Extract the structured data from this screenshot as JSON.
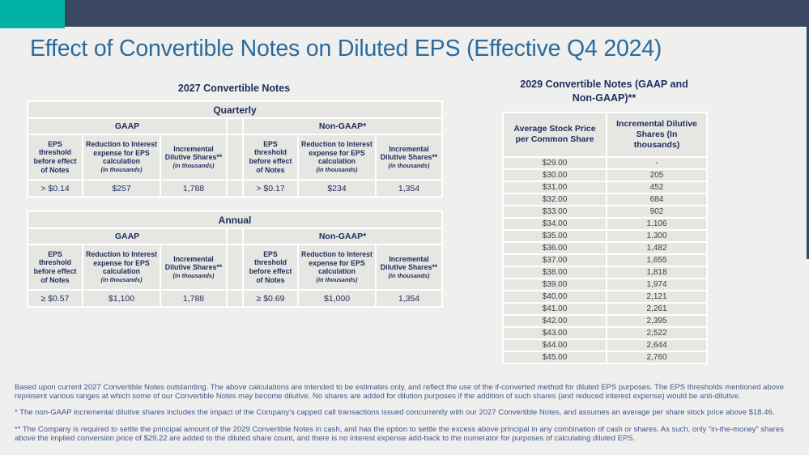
{
  "page": {
    "title": "Effect of Convertible Notes on Diluted EPS (Effective Q4 2024)"
  },
  "colors": {
    "teal": "#00B1A5",
    "navy_bar": "#394760",
    "page_bg": "#EFEFED",
    "title_blue": "#2B6B9E",
    "header_navy": "#1F2C5C",
    "cell_bg": "#E6E6E3",
    "value_text": "#3F3F3F",
    "footnote_blue": "#44568E"
  },
  "table_2027": {
    "title": "2027 Convertible Notes",
    "col_headers": {
      "eps": "EPS threshold before effect of Notes",
      "reduction": "Reduction to Interest expense for EPS calculation",
      "incremental": "Incremental Dilutive Shares**",
      "in_thousands": "(in thousands)"
    },
    "sections": [
      {
        "period": "Quarterly",
        "gaap_label": "GAAP",
        "non_gaap_label": "Non-GAAP*",
        "gaap": {
          "eps": "> $0.14",
          "reduction": "$257",
          "incremental": "1,788"
        },
        "non_gaap": {
          "eps": "> $0.17",
          "reduction": "$234",
          "incremental": "1,354"
        }
      },
      {
        "period": "Annual",
        "gaap_label": "GAAP",
        "non_gaap_label": "Non-GAAP*",
        "gaap": {
          "eps": "≥ $0.57",
          "reduction": "$1,100",
          "incremental": "1,788"
        },
        "non_gaap": {
          "eps": "≥ $0.69",
          "reduction": "$1,000",
          "incremental": "1,354"
        }
      }
    ]
  },
  "table_2029": {
    "title": "2029 Convertible Notes (GAAP and Non-GAAP)**",
    "col1_header": "Average Stock Price per Common Share",
    "col2_header": "Incremental Dilutive Shares (In thousands)",
    "rows": [
      [
        "$29.00",
        "-"
      ],
      [
        "$30.00",
        "205"
      ],
      [
        "$31.00",
        "452"
      ],
      [
        "$32.00",
        "684"
      ],
      [
        "$33.00",
        "902"
      ],
      [
        "$34.00",
        "1,106"
      ],
      [
        "$35.00",
        "1,300"
      ],
      [
        "$36.00",
        "1,482"
      ],
      [
        "$37.00",
        "1,655"
      ],
      [
        "$38.00",
        "1,818"
      ],
      [
        "$39.00",
        "1,974"
      ],
      [
        "$40.00",
        "2,121"
      ],
      [
        "$41.00",
        "2,261"
      ],
      [
        "$42.00",
        "2,395"
      ],
      [
        "$43.00",
        "2,522"
      ],
      [
        "$44.00",
        "2,644"
      ],
      [
        "$45.00",
        "2,760"
      ]
    ]
  },
  "footnotes": [
    "Based upon current 2027 Convertible Notes outstanding. The above calculations are intended to be estimates only, and reflect the use of the if-converted method for diluted EPS purposes. The EPS thresholds mentioned above represent various ranges at which some of our Convertible Notes may become dilutive. No shares are added for dilution purposes if the addition of such shares (and reduced interest expense) would be anti-dilutive.",
    "* The non-GAAP incremental dilutive shares includes the impact of the Company’s capped call transactions issued concurrently with our 2027 Convertible Notes, and assumes an average per share stock price above $18.46.",
    "** The Company is required to settle the principal amount of the 2029 Convertible Notes in cash, and has the option to settle the excess above principal in any combination of cash or shares. As such, only “in-the-money” shares above the implied conversion price of $29.22 are added to the diluted share count, and there is no interest expense add-back to the numerator for purposes of calculating diluted EPS."
  ]
}
